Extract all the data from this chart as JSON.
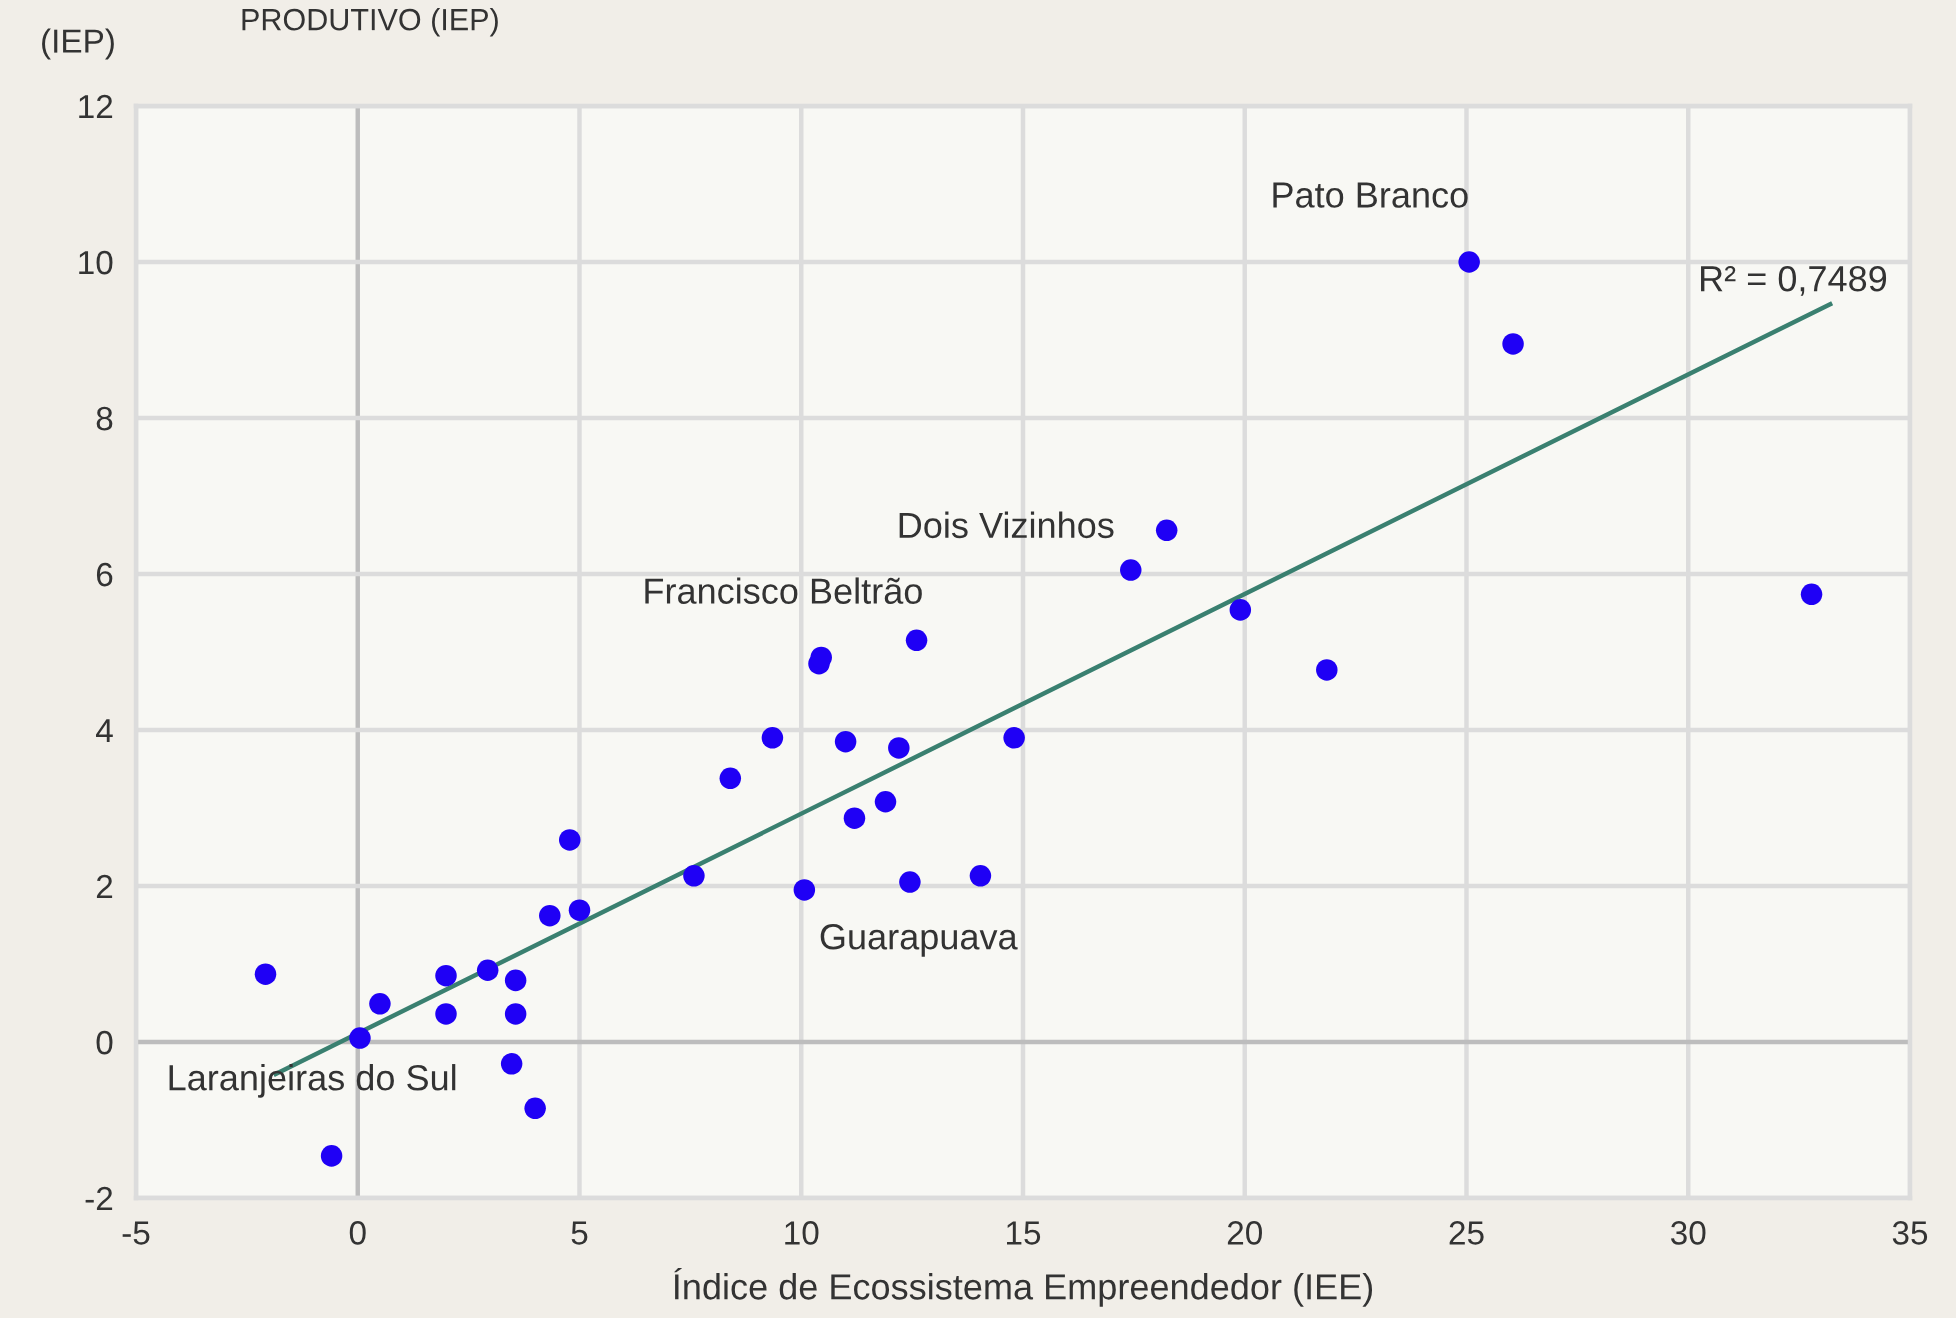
{
  "chart_data": {
    "type": "scatter",
    "title": "PRODUTIVO (IEP)",
    "ylabel": "(IEP)",
    "xlabel": "Índice de Ecossistema Empreendedor (IEE)",
    "series": [
      {
        "color": "#1f00f5",
        "marker": "circle",
        "x": [
          -2.08,
          0.05,
          0.5,
          1.99,
          1.99,
          2.93,
          3.56,
          3.56,
          3.47,
          4.0,
          -0.59,
          4.33,
          5.0,
          4.78,
          7.58,
          8.4,
          9.35,
          10.07,
          10.4,
          10.45,
          11.0,
          11.2,
          11.9,
          12.2,
          12.45,
          12.6,
          14.04,
          14.8,
          17.43,
          18.24,
          19.9,
          21.85,
          25.06,
          26.05,
          32.78
        ],
        "values": [
          0.87,
          0.05,
          0.49,
          0.85,
          0.36,
          0.92,
          0.79,
          0.36,
          -0.28,
          -0.85,
          -1.46,
          1.62,
          1.69,
          2.59,
          2.13,
          3.38,
          3.9,
          1.95,
          4.85,
          4.93,
          3.85,
          2.87,
          3.08,
          3.77,
          2.05,
          5.15,
          2.13,
          3.9,
          6.05,
          6.56,
          5.54,
          4.77,
          10.0,
          8.95,
          5.74
        ]
      },
      {
        "type": "line",
        "color": "#3a8070",
        "x": [
          -1.85,
          33.2
        ],
        "values": [
          -0.41,
          9.46
        ]
      }
    ],
    "annotations": [
      {
        "text": "Pato Branco",
        "x": 25.06,
        "y": 10.0
      },
      {
        "text": "Dois Vizinhos",
        "x": 17.43,
        "y": 6.05
      },
      {
        "text": "Francisco Beltrão",
        "x": 10.4,
        "y": 4.85
      },
      {
        "text": "Guarapuava",
        "x": 10.07,
        "y": 1.95
      },
      {
        "text": "Laranjeiras do Sul",
        "x": -0.59,
        "y": -1.46
      },
      "R² = 0,7489"
    ],
    "xlim": [
      -5,
      35
    ],
    "xticks": [
      -5,
      0,
      5,
      10,
      15,
      20,
      25,
      30,
      35
    ],
    "ylim": [
      -2,
      12
    ],
    "yticks": [
      -2,
      0,
      2,
      4,
      6,
      8,
      10,
      12
    ],
    "grid": true
  }
}
